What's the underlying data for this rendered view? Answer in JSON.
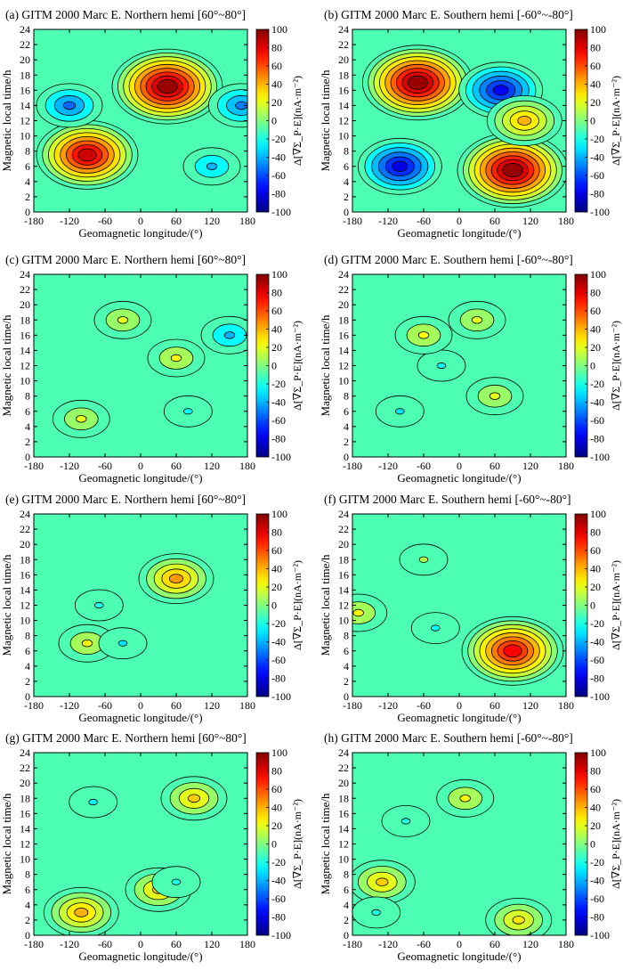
{
  "chart_data": [
    {
      "type": "heatmap",
      "label": "a",
      "title": "(a) GITM 2000 Marc E. Northern hemi [60°~80°]",
      "colorbar_label": "Δ[∇Σ_P·E](nA·m⁻²)",
      "blobs": [
        {
          "lon": -90,
          "mlt": 7.5,
          "value": 85
        },
        {
          "lon": 45,
          "mlt": 16.5,
          "value": 95
        },
        {
          "lon": -120,
          "mlt": 14,
          "value": -55
        },
        {
          "lon": 170,
          "mlt": 14,
          "value": -50
        },
        {
          "lon": 120,
          "mlt": 6,
          "value": -40
        }
      ]
    },
    {
      "type": "heatmap",
      "label": "b",
      "title": "(b) GITM 2000 Marc E. Southern hemi [-60°~-80°]",
      "colorbar_label": "Δ[∇Σ_P·E](nA·m⁻²)",
      "blobs": [
        {
          "lon": -70,
          "mlt": 17,
          "value": 95
        },
        {
          "lon": 90,
          "mlt": 5.5,
          "value": 95
        },
        {
          "lon": 70,
          "mlt": 16,
          "value": -75
        },
        {
          "lon": -100,
          "mlt": 6,
          "value": -80
        },
        {
          "lon": 110,
          "mlt": 12,
          "value": 40
        }
      ]
    },
    {
      "type": "heatmap",
      "label": "c",
      "title": "(c) GITM 2000 Marc E. Northern hemi [60°~80°]",
      "colorbar_label": "Δ[∇Σ_P·E](nA·m⁻²)",
      "blobs": [
        {
          "lon": 150,
          "mlt": 16,
          "value": -40
        },
        {
          "lon": 80,
          "mlt": 6,
          "value": -25
        },
        {
          "lon": 60,
          "mlt": 13,
          "value": 25
        },
        {
          "lon": -100,
          "mlt": 5,
          "value": 20
        },
        {
          "lon": -30,
          "mlt": 18,
          "value": 20
        }
      ]
    },
    {
      "type": "heatmap",
      "label": "d",
      "title": "(d) GITM 2000 Marc E. Southern hemi [-60°~-80°]",
      "colorbar_label": "Δ[∇Σ_P·E](nA·m⁻²)",
      "blobs": [
        {
          "lon": -100,
          "mlt": 6,
          "value": -30
        },
        {
          "lon": -30,
          "mlt": 12,
          "value": -25
        },
        {
          "lon": -60,
          "mlt": 16,
          "value": 25
        },
        {
          "lon": 60,
          "mlt": 8,
          "value": 20
        },
        {
          "lon": 30,
          "mlt": 18,
          "value": 20
        }
      ]
    },
    {
      "type": "heatmap",
      "label": "e",
      "title": "(e) GITM 2000 Marc E. Northern hemi [60°~80°]",
      "colorbar_label": "Δ[∇Σ_P·E](nA·m⁻²)",
      "blobs": [
        {
          "lon": 60,
          "mlt": 15.5,
          "value": 45
        },
        {
          "lon": -90,
          "mlt": 7,
          "value": 25
        },
        {
          "lon": -30,
          "mlt": 7,
          "value": -30
        },
        {
          "lon": -70,
          "mlt": 12,
          "value": -20
        }
      ]
    },
    {
      "type": "heatmap",
      "label": "f",
      "title": "(f) GITM 2000 Marc E. Southern hemi [-60°~-80°]",
      "colorbar_label": "Δ[∇Σ_P·E](nA·m⁻²)",
      "blobs": [
        {
          "lon": 90,
          "mlt": 6,
          "value": 75
        },
        {
          "lon": -40,
          "mlt": 9,
          "value": -25
        },
        {
          "lon": -170,
          "mlt": 11,
          "value": 25
        },
        {
          "lon": -60,
          "mlt": 18,
          "value": 10
        }
      ]
    },
    {
      "type": "heatmap",
      "label": "g",
      "title": "(g) GITM 2000 Marc E. Northern hemi [60°~80°]",
      "colorbar_label": "Δ[∇Σ_P·E](nA·m⁻²)",
      "blobs": [
        {
          "lon": -100,
          "mlt": 3,
          "value": 40
        },
        {
          "lon": 90,
          "mlt": 18,
          "value": 35
        },
        {
          "lon": 30,
          "mlt": 6,
          "value": 35
        },
        {
          "lon": -80,
          "mlt": 17.5,
          "value": -25
        },
        {
          "lon": 60,
          "mlt": 7,
          "value": -20
        }
      ]
    },
    {
      "type": "heatmap",
      "label": "h",
      "title": "(h) GITM 2000 Marc E. Southern hemi [-60°~-80°]",
      "colorbar_label": "Δ[∇Σ_P·E](nA·m⁻²)",
      "blobs": [
        {
          "lon": -130,
          "mlt": 7,
          "value": 35
        },
        {
          "lon": 10,
          "mlt": 18,
          "value": 25
        },
        {
          "lon": 100,
          "mlt": 2,
          "value": 30
        },
        {
          "lon": -140,
          "mlt": 3,
          "value": -20
        },
        {
          "lon": -90,
          "mlt": 15,
          "value": -20
        }
      ]
    }
  ],
  "axes": {
    "xlabel": "Geomagnetic longitude/(°)",
    "ylabel": "Magnetic local time/h",
    "xticks": [
      "-180",
      "-120",
      "-60",
      "0",
      "60",
      "120",
      "180"
    ],
    "yticks": [
      "0",
      "2",
      "4",
      "6",
      "8",
      "10",
      "12",
      "14",
      "16",
      "18",
      "20",
      "22",
      "24"
    ],
    "xlim": [
      -180,
      180
    ],
    "ylim": [
      0,
      24
    ]
  },
  "colorbar": {
    "ticks": [
      "100",
      "80",
      "60",
      "40",
      "20",
      "0",
      "-20",
      "-40",
      "-60",
      "-80",
      "-100"
    ],
    "range": [
      -100,
      100
    ],
    "colors": [
      "#00008f",
      "#0000ff",
      "#0080ff",
      "#00ffff",
      "#80ff80",
      "#ffff00",
      "#ff8000",
      "#ff0000",
      "#800000"
    ]
  }
}
